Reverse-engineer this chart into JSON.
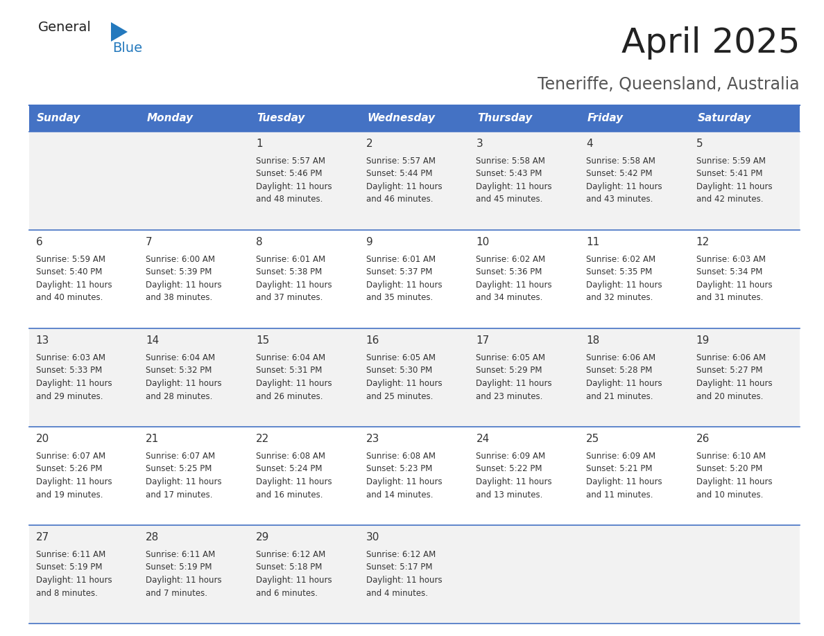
{
  "title": "April 2025",
  "subtitle": "Teneriffe, Queensland, Australia",
  "days_of_week": [
    "Sunday",
    "Monday",
    "Tuesday",
    "Wednesday",
    "Thursday",
    "Friday",
    "Saturday"
  ],
  "header_bg": "#4472C4",
  "header_text_color": "#FFFFFF",
  "row_bg_even": "#F2F2F2",
  "row_bg_odd": "#FFFFFF",
  "border_color": "#4472C4",
  "text_color": "#333333",
  "calendar_data": [
    [
      {
        "day": null,
        "text": null
      },
      {
        "day": null,
        "text": null
      },
      {
        "day": 1,
        "text": "Sunrise: 5:57 AM\nSunset: 5:46 PM\nDaylight: 11 hours\nand 48 minutes."
      },
      {
        "day": 2,
        "text": "Sunrise: 5:57 AM\nSunset: 5:44 PM\nDaylight: 11 hours\nand 46 minutes."
      },
      {
        "day": 3,
        "text": "Sunrise: 5:58 AM\nSunset: 5:43 PM\nDaylight: 11 hours\nand 45 minutes."
      },
      {
        "day": 4,
        "text": "Sunrise: 5:58 AM\nSunset: 5:42 PM\nDaylight: 11 hours\nand 43 minutes."
      },
      {
        "day": 5,
        "text": "Sunrise: 5:59 AM\nSunset: 5:41 PM\nDaylight: 11 hours\nand 42 minutes."
      }
    ],
    [
      {
        "day": 6,
        "text": "Sunrise: 5:59 AM\nSunset: 5:40 PM\nDaylight: 11 hours\nand 40 minutes."
      },
      {
        "day": 7,
        "text": "Sunrise: 6:00 AM\nSunset: 5:39 PM\nDaylight: 11 hours\nand 38 minutes."
      },
      {
        "day": 8,
        "text": "Sunrise: 6:01 AM\nSunset: 5:38 PM\nDaylight: 11 hours\nand 37 minutes."
      },
      {
        "day": 9,
        "text": "Sunrise: 6:01 AM\nSunset: 5:37 PM\nDaylight: 11 hours\nand 35 minutes."
      },
      {
        "day": 10,
        "text": "Sunrise: 6:02 AM\nSunset: 5:36 PM\nDaylight: 11 hours\nand 34 minutes."
      },
      {
        "day": 11,
        "text": "Sunrise: 6:02 AM\nSunset: 5:35 PM\nDaylight: 11 hours\nand 32 minutes."
      },
      {
        "day": 12,
        "text": "Sunrise: 6:03 AM\nSunset: 5:34 PM\nDaylight: 11 hours\nand 31 minutes."
      }
    ],
    [
      {
        "day": 13,
        "text": "Sunrise: 6:03 AM\nSunset: 5:33 PM\nDaylight: 11 hours\nand 29 minutes."
      },
      {
        "day": 14,
        "text": "Sunrise: 6:04 AM\nSunset: 5:32 PM\nDaylight: 11 hours\nand 28 minutes."
      },
      {
        "day": 15,
        "text": "Sunrise: 6:04 AM\nSunset: 5:31 PM\nDaylight: 11 hours\nand 26 minutes."
      },
      {
        "day": 16,
        "text": "Sunrise: 6:05 AM\nSunset: 5:30 PM\nDaylight: 11 hours\nand 25 minutes."
      },
      {
        "day": 17,
        "text": "Sunrise: 6:05 AM\nSunset: 5:29 PM\nDaylight: 11 hours\nand 23 minutes."
      },
      {
        "day": 18,
        "text": "Sunrise: 6:06 AM\nSunset: 5:28 PM\nDaylight: 11 hours\nand 21 minutes."
      },
      {
        "day": 19,
        "text": "Sunrise: 6:06 AM\nSunset: 5:27 PM\nDaylight: 11 hours\nand 20 minutes."
      }
    ],
    [
      {
        "day": 20,
        "text": "Sunrise: 6:07 AM\nSunset: 5:26 PM\nDaylight: 11 hours\nand 19 minutes."
      },
      {
        "day": 21,
        "text": "Sunrise: 6:07 AM\nSunset: 5:25 PM\nDaylight: 11 hours\nand 17 minutes."
      },
      {
        "day": 22,
        "text": "Sunrise: 6:08 AM\nSunset: 5:24 PM\nDaylight: 11 hours\nand 16 minutes."
      },
      {
        "day": 23,
        "text": "Sunrise: 6:08 AM\nSunset: 5:23 PM\nDaylight: 11 hours\nand 14 minutes."
      },
      {
        "day": 24,
        "text": "Sunrise: 6:09 AM\nSunset: 5:22 PM\nDaylight: 11 hours\nand 13 minutes."
      },
      {
        "day": 25,
        "text": "Sunrise: 6:09 AM\nSunset: 5:21 PM\nDaylight: 11 hours\nand 11 minutes."
      },
      {
        "day": 26,
        "text": "Sunrise: 6:10 AM\nSunset: 5:20 PM\nDaylight: 11 hours\nand 10 minutes."
      }
    ],
    [
      {
        "day": 27,
        "text": "Sunrise: 6:11 AM\nSunset: 5:19 PM\nDaylight: 11 hours\nand 8 minutes."
      },
      {
        "day": 28,
        "text": "Sunrise: 6:11 AM\nSunset: 5:19 PM\nDaylight: 11 hours\nand 7 minutes."
      },
      {
        "day": 29,
        "text": "Sunrise: 6:12 AM\nSunset: 5:18 PM\nDaylight: 11 hours\nand 6 minutes."
      },
      {
        "day": 30,
        "text": "Sunrise: 6:12 AM\nSunset: 5:17 PM\nDaylight: 11 hours\nand 4 minutes."
      },
      {
        "day": null,
        "text": null
      },
      {
        "day": null,
        "text": null
      },
      {
        "day": null,
        "text": null
      }
    ]
  ],
  "logo_color_general": "#222222",
  "logo_color_blue": "#2479BD",
  "logo_triangle_color": "#2479BD",
  "title_color": "#222222",
  "subtitle_color": "#555555",
  "title_fontsize": 36,
  "subtitle_fontsize": 17,
  "header_fontsize": 11,
  "day_num_fontsize": 11,
  "cell_text_fontsize": 8.5
}
